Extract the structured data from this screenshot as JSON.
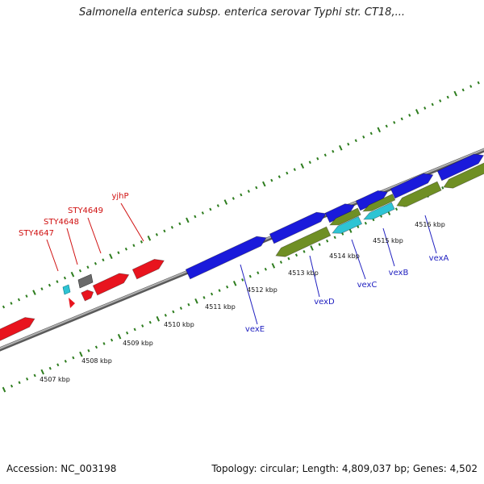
{
  "header": {
    "title": "Salmonella enterica subsp. enterica serovar Typhi str. CT18,..."
  },
  "footer": {
    "accession": "Accession: NC_003198",
    "summary": "Topology: circular; Length: 4,809,037 bp; Genes: 4,502"
  },
  "colors": {
    "backbone": "#8c8c8c",
    "tick": "#2e7d1f",
    "red_gene": "#e8141e",
    "blue_gene": "#1a1adb",
    "olive_gene": "#6f8f24",
    "cyan_gene": "#2ec4d4",
    "gray_gene": "#6a6a6a",
    "red_label": "#d01010",
    "blue_label": "#2020c0"
  },
  "scale_labels": [
    {
      "text": "4507 kbp"
    },
    {
      "text": "4508 kbp"
    },
    {
      "text": "4509 kbp"
    },
    {
      "text": "4510 kbp"
    },
    {
      "text": "4511 kbp"
    },
    {
      "text": "4512 kbp"
    },
    {
      "text": "4513 kbp"
    },
    {
      "text": "4514 kbp"
    },
    {
      "text": "4515 kbp"
    },
    {
      "text": "4516 kbp"
    }
  ],
  "gene_labels": [
    {
      "text": "STY4647",
      "group": "red"
    },
    {
      "text": "STY4648",
      "group": "red"
    },
    {
      "text": "STY4649",
      "group": "red"
    },
    {
      "text": "yjhP",
      "group": "red"
    },
    {
      "text": "vexE",
      "group": "blue"
    },
    {
      "text": "vexD",
      "group": "blue"
    },
    {
      "text": "vexC",
      "group": "blue"
    },
    {
      "text": "vexB",
      "group": "blue"
    },
    {
      "text": "vexA",
      "group": "blue"
    }
  ]
}
